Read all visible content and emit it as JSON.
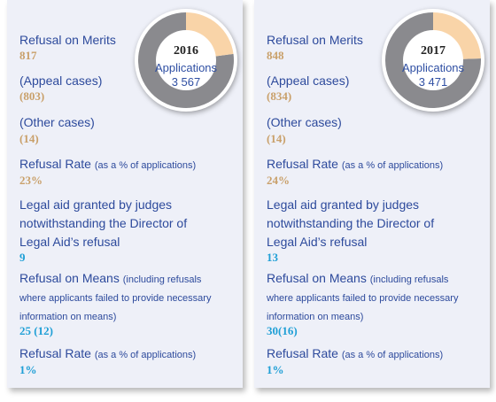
{
  "panels": [
    {
      "year": "2016",
      "applications_label": "Applications",
      "applications_value": "3 567",
      "pie_highlight_fraction": 0.229,
      "refusal_on_merits": {
        "label": "Refusal on Merits",
        "value": "817"
      },
      "appeal_cases": {
        "label": "(Appeal cases)",
        "value": "(803)"
      },
      "other_cases": {
        "label": "(Other cases)",
        "value": "(14)"
      },
      "refusal_rate_merits": {
        "label": "Refusal Rate",
        "note": "(as a % of applications)",
        "value": "23%"
      },
      "legal_aid_granted": {
        "line1": "Legal aid granted by judges",
        "line2": "notwithstanding the Director of",
        "line3": "Legal Aid’s refusal",
        "value": "9"
      },
      "refusal_on_means": {
        "label": "Refusal on Means",
        "note1": "(including refusals",
        "note2": "where applicants failed to provide necessary",
        "note3": "information on means)",
        "value": "25 (12)"
      },
      "refusal_rate_means": {
        "label": "Refusal Rate",
        "note": "(as a % of applications)",
        "value": "1%"
      }
    },
    {
      "year": "2017",
      "applications_label": "Applications",
      "applications_value": "3 471",
      "pie_highlight_fraction": 0.244,
      "refusal_on_merits": {
        "label": "Refusal on Merits",
        "value": "848"
      },
      "appeal_cases": {
        "label": "(Appeal cases)",
        "value": "(834)"
      },
      "other_cases": {
        "label": "(Other cases)",
        "value": "(14)"
      },
      "refusal_rate_merits": {
        "label": "Refusal Rate",
        "note": "(as a % of applications)",
        "value": "24%"
      },
      "legal_aid_granted": {
        "line1": "Legal aid granted by judges",
        "line2": "notwithstanding the Director of",
        "line3": "Legal Aid’s refusal",
        "value": "13"
      },
      "refusal_on_means": {
        "label": "Refusal on Means",
        "note1": "(including refusals",
        "note2": "where applicants failed to provide necessary",
        "note3": "information on means)",
        "value": "30(16)"
      },
      "refusal_rate_means": {
        "label": "Refusal Rate",
        "note": "(as a % of applications)",
        "value": "1%"
      }
    }
  ],
  "colors": {
    "donut_main": "#8a8a8e",
    "donut_highlight": "#f9d4a8",
    "label_blue": "#2d4a9c",
    "value_tan": "#c9a06a",
    "value_blue": "#1f9fd6",
    "panel_bg": "#eef0f8"
  }
}
